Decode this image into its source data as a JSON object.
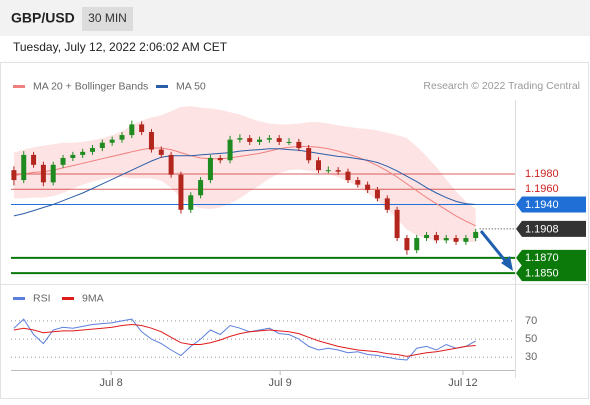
{
  "header": {
    "symbol": "GBP/USD",
    "timeframe": "30 MIN",
    "timestamp": "Tuesday, July 12, 2022 2:06:02 AM CET",
    "credit": "Research © 2022 Trading Central"
  },
  "chart_data": [
    {
      "type": "candlestick",
      "xlim": [
        -0.5,
        51
      ],
      "ylim": [
        1.1837,
        1.2077
      ],
      "up_color": "#1f8a1f",
      "down_color": "#b3261e",
      "ohlc": [
        [
          1.1985,
          1.199,
          1.1965,
          1.1972
        ],
        [
          1.1972,
          1.201,
          1.1968,
          1.2005
        ],
        [
          1.2005,
          1.2009,
          1.1988,
          1.1992
        ],
        [
          1.1992,
          1.1996,
          1.1964,
          1.1969
        ],
        [
          1.1969,
          1.1996,
          1.1965,
          1.1992
        ],
        [
          1.1992,
          1.2005,
          1.1988,
          1.2001
        ],
        [
          1.2001,
          1.2009,
          1.1997,
          1.2005
        ],
        [
          1.2005,
          1.2013,
          1.2001,
          1.2009
        ],
        [
          1.2009,
          1.2018,
          1.2005,
          1.2014
        ],
        [
          1.2014,
          1.2025,
          1.201,
          1.2021
        ],
        [
          1.2021,
          1.2029,
          1.2017,
          1.2025
        ],
        [
          1.2025,
          1.2035,
          1.2021,
          1.2031
        ],
        [
          1.2031,
          1.205,
          1.2027,
          1.2045
        ],
        [
          1.2045,
          1.2049,
          1.2031,
          1.2035
        ],
        [
          1.2035,
          1.2039,
          1.2008,
          1.2012
        ],
        [
          1.2012,
          1.2016,
          1.2001,
          1.2005
        ],
        [
          1.2005,
          1.2009,
          1.1975,
          1.1979
        ],
        [
          1.1979,
          1.1983,
          1.1928,
          1.1933
        ],
        [
          1.1933,
          1.1956,
          1.1929,
          1.1952
        ],
        [
          1.1952,
          1.1976,
          1.1948,
          1.1972
        ],
        [
          1.1972,
          1.2005,
          1.1968,
          1.2001
        ],
        [
          1.2001,
          1.2005,
          1.1994,
          1.1998
        ],
        [
          1.1998,
          1.203,
          1.1994,
          1.2025
        ],
        [
          1.2025,
          1.2032,
          1.2021,
          1.2027
        ],
        [
          1.2027,
          1.2031,
          1.2018,
          1.2022
        ],
        [
          1.2022,
          1.2029,
          1.2018,
          1.2025
        ],
        [
          1.2025,
          1.2031,
          1.2021,
          1.2027
        ],
        [
          1.2027,
          1.2031,
          1.2018,
          1.2022
        ],
        [
          1.2022,
          1.2027,
          1.2018,
          1.2022
        ],
        [
          1.2022,
          1.2026,
          1.201,
          1.2014
        ],
        [
          1.2014,
          1.2018,
          1.1994,
          1.1998
        ],
        [
          1.1998,
          1.2002,
          1.1981,
          1.1985
        ],
        [
          1.1985,
          1.199,
          1.1981,
          1.1985
        ],
        [
          1.1985,
          1.1989,
          1.1979,
          1.1983
        ],
        [
          1.1983,
          1.1987,
          1.1968,
          1.1972
        ],
        [
          1.1972,
          1.1976,
          1.1962,
          1.1966
        ],
        [
          1.1966,
          1.197,
          1.1955,
          1.1959
        ],
        [
          1.1959,
          1.1963,
          1.1944,
          1.1948
        ],
        [
          1.1948,
          1.1952,
          1.1929,
          1.1933
        ],
        [
          1.1933,
          1.1937,
          1.1892,
          1.1896
        ],
        [
          1.1896,
          1.19,
          1.1874,
          1.188
        ],
        [
          1.188,
          1.19,
          1.1876,
          1.1896
        ],
        [
          1.1896,
          1.1904,
          1.1892,
          1.19
        ],
        [
          1.19,
          1.1904,
          1.1889,
          1.1893
        ],
        [
          1.1893,
          1.19,
          1.1889,
          1.1896
        ],
        [
          1.1896,
          1.19,
          1.1887,
          1.1891
        ],
        [
          1.1891,
          1.19,
          1.1887,
          1.1896
        ],
        [
          1.1896,
          1.1908,
          1.1892,
          1.1904
        ]
      ],
      "bands": {
        "color": "#fde3e3",
        "upper": [
          1.2008,
          1.2012,
          1.2015,
          1.2017,
          1.2019,
          1.2021,
          1.2021,
          1.2022,
          1.2024,
          1.2027,
          1.2031,
          1.2036,
          1.2044,
          1.205,
          1.2054,
          1.2057,
          1.2062,
          1.2068,
          1.2069,
          1.2067,
          1.2066,
          1.2064,
          1.2061,
          1.2058,
          1.2053,
          1.2049,
          1.2046,
          1.2045,
          1.2045,
          1.2046,
          1.2048,
          1.2048,
          1.2046,
          1.2044,
          1.2042,
          1.204,
          1.2039,
          1.2037,
          1.2034,
          1.2031,
          1.2027,
          1.2016,
          1.2003,
          1.1989,
          1.1973,
          1.1957,
          1.1944,
          1.1934
        ],
        "lower": [
          1.1948,
          1.1948,
          1.1949,
          1.1949,
          1.1951,
          1.1955,
          1.1961,
          1.1966,
          1.197,
          1.1973,
          1.1975,
          1.1976,
          1.1974,
          1.1974,
          1.1974,
          1.1971,
          1.1962,
          1.1948,
          1.1939,
          1.1935,
          1.1934,
          1.1936,
          1.1941,
          1.1948,
          1.1957,
          1.1965,
          1.1974,
          1.1981,
          1.1985,
          1.1986,
          1.1984,
          1.1982,
          1.198,
          1.1976,
          1.197,
          1.1964,
          1.1955,
          1.1945,
          1.1934,
          1.1921,
          1.1907,
          1.19,
          1.1895,
          1.1893,
          1.1893,
          1.1893,
          1.1892,
          1.189
        ]
      },
      "series": [
        {
          "name": "MA 20 + Bollinger Bands",
          "color": "#f08080",
          "values": [
            1.1978,
            1.198,
            1.1982,
            1.1983,
            1.1985,
            1.1988,
            1.1991,
            1.1994,
            1.1997,
            1.2,
            1.2003,
            1.2006,
            1.2009,
            1.2012,
            1.2014,
            1.2014,
            1.2012,
            1.2008,
            1.2004,
            1.2001,
            1.2,
            1.2,
            1.2001,
            1.2003,
            1.2005,
            1.2007,
            1.201,
            1.2013,
            1.2015,
            1.2016,
            1.2016,
            1.2015,
            1.2013,
            1.201,
            1.2006,
            1.2002,
            1.1997,
            1.1991,
            1.1984,
            1.1976,
            1.1967,
            1.1958,
            1.1949,
            1.1941,
            1.1933,
            1.1925,
            1.1918,
            1.1912
          ]
        },
        {
          "name": "MA 50",
          "color": "#2b5ea8",
          "values": [
            1.1925,
            1.1928,
            1.1932,
            1.1936,
            1.194,
            1.1945,
            1.195,
            1.1955,
            1.1961,
            1.1967,
            1.1973,
            1.1979,
            1.1985,
            1.1991,
            1.1997,
            1.2002,
            1.2004,
            1.2004,
            1.2004,
            1.2005,
            1.2006,
            1.2007,
            1.2008,
            1.201,
            1.2011,
            1.2012,
            1.2013,
            1.2013,
            1.2012,
            1.2011,
            1.2009,
            1.2007,
            1.2005,
            1.2003,
            1.2002,
            1.2,
            1.1998,
            1.1995,
            1.199,
            1.1984,
            1.1977,
            1.197,
            1.1962,
            1.1955,
            1.1949,
            1.1944,
            1.1941,
            1.194
          ]
        }
      ],
      "levels": [
        {
          "value": 1.198,
          "label": "1.1980",
          "color": "#cc2222",
          "style": "text"
        },
        {
          "value": 1.196,
          "label": "1.1960",
          "color": "#cc2222",
          "style": "text"
        },
        {
          "value": 1.194,
          "label": "1.1940",
          "color": "#1f6fd6",
          "style": "box"
        },
        {
          "value": 1.1908,
          "label": "1.1908",
          "color": "#333333",
          "style": "dotted"
        },
        {
          "value": 1.187,
          "label": "1.1870",
          "color": "#0b7a0b",
          "style": "thick"
        },
        {
          "value": 1.185,
          "label": "1.1850",
          "color": "#0b7a0b",
          "style": "thick"
        }
      ]
    },
    {
      "type": "line",
      "xlim": [
        -0.5,
        51
      ],
      "ylim": [
        16,
        93
      ],
      "yticks": [
        30,
        50,
        70
      ],
      "xticks": [
        {
          "value": 9.9,
          "label": "Jul 8"
        },
        {
          "value": 27.1,
          "label": "Jul 9"
        },
        {
          "value": 45.7,
          "label": "Jul 12"
        }
      ],
      "series": [
        {
          "name": "RSI",
          "color": "#5b7fdb",
          "values": [
            62,
            72,
            55,
            45,
            60,
            63,
            62,
            64,
            66,
            67,
            68,
            70,
            72,
            58,
            50,
            45,
            38,
            32,
            42,
            50,
            60,
            55,
            65,
            62,
            58,
            60,
            62,
            56,
            55,
            50,
            42,
            38,
            40,
            38,
            35,
            36,
            33,
            32,
            30,
            28,
            27,
            40,
            42,
            38,
            44,
            40,
            42,
            48
          ]
        },
        {
          "name": "9MA",
          "color": "#e01b1b",
          "values": [
            60,
            62,
            60,
            57,
            58,
            59,
            59,
            60,
            61,
            62,
            63,
            65,
            66,
            65,
            62,
            58,
            52,
            46,
            44,
            44,
            46,
            49,
            53,
            56,
            58,
            59,
            60,
            59,
            58,
            56,
            52,
            48,
            45,
            42,
            40,
            38,
            37,
            36,
            34,
            33,
            31,
            33,
            35,
            36,
            38,
            40,
            42,
            43
          ]
        }
      ]
    }
  ]
}
